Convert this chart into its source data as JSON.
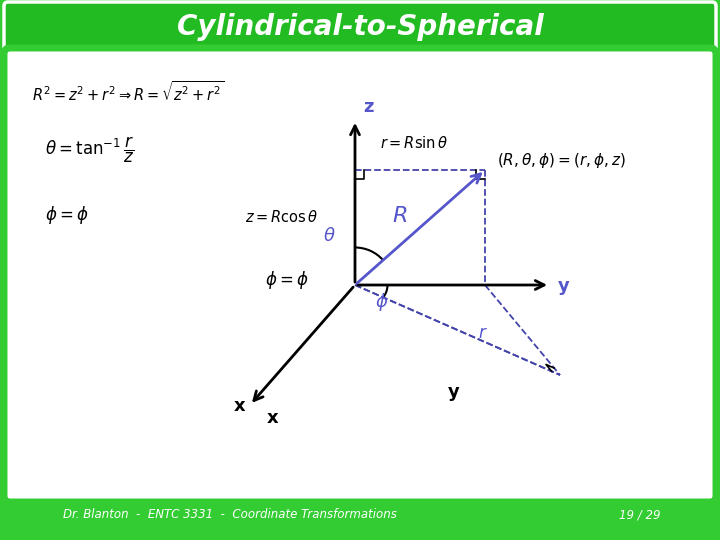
{
  "title": "Cylindrical-to-Spherical",
  "title_bg": "#22bb22",
  "title_color": "white",
  "slide_bg": "#33cc33",
  "inner_bg": "white",
  "footer_text": "Dr. Blanton  -  ENTC 3331  -  Coordinate Transformations",
  "footer_page": "19 / 29",
  "eq1": "$R^2 = z^2 + r^2 \\Rightarrow R = \\sqrt{z^2 + r^2}$",
  "eq2": "$\\theta = \\tan^{-1}\\dfrac{r}{z}$",
  "eq3_left": "$\\phi = \\phi$",
  "eq3_mid": "$\\phi = \\phi$",
  "eq4": "$(R, \\theta, \\phi) = (r, \\phi, z)$",
  "label_z_cos": "$z = R\\cos\\theta$",
  "label_r_sin": "$r = R\\sin\\theta$",
  "label_R": "$R$",
  "label_r_dashed": "$r$",
  "label_theta": "$\\theta$",
  "label_phi": "$\\phi$",
  "dashed_color": "#4444aa",
  "R_color": "#5555cc",
  "label_color": "#5555cc",
  "axis_color": "black"
}
